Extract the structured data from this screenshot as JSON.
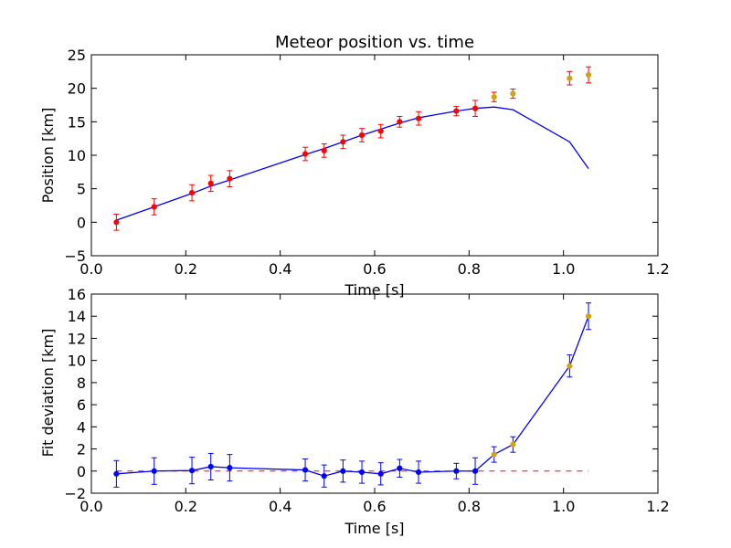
{
  "chart_data": [
    {
      "type": "scatter",
      "title": "Meteor position vs. time",
      "xlabel": "Time [s]",
      "ylabel": "Position [km]",
      "xlim": [
        0.0,
        1.2
      ],
      "ylim": [
        -5,
        25
      ],
      "xticks": [
        "0.0",
        "0.2",
        "0.4",
        "0.6",
        "0.8",
        "1.0",
        "1.2"
      ],
      "yticks": [
        "−5",
        "0",
        "5",
        "10",
        "15",
        "20",
        "25"
      ],
      "grid": false,
      "colors": {
        "points_fit": "#ff0000",
        "points_excluded": "#d4a017",
        "errorbar": "#ff0000",
        "model": "#0000ff"
      },
      "series": [
        {
          "role": "points",
          "x": [
            0.053,
            0.133,
            0.213,
            0.253,
            0.293,
            0.453,
            0.493,
            0.533,
            0.573,
            0.613,
            0.653,
            0.693,
            0.773,
            0.813,
            0.853,
            0.893,
            1.013,
            1.053
          ],
          "y": [
            0.0,
            2.3,
            4.4,
            5.8,
            6.5,
            10.2,
            10.7,
            12.0,
            13.0,
            13.6,
            15.0,
            15.5,
            16.6,
            17.0,
            18.7,
            19.2,
            21.5,
            22.0
          ],
          "yerr": [
            1.2,
            1.2,
            1.2,
            1.2,
            1.2,
            1.0,
            1.0,
            1.0,
            1.0,
            1.0,
            0.8,
            1.0,
            0.7,
            1.2,
            0.7,
            0.7,
            1.0,
            1.2
          ],
          "excluded": [
            false,
            false,
            false,
            false,
            false,
            false,
            false,
            false,
            false,
            false,
            false,
            false,
            false,
            false,
            true,
            true,
            true,
            true
          ]
        },
        {
          "role": "model",
          "x": [
            0.053,
            0.133,
            0.213,
            0.253,
            0.293,
            0.453,
            0.493,
            0.533,
            0.573,
            0.613,
            0.653,
            0.693,
            0.773,
            0.813,
            0.853,
            0.893,
            1.013,
            1.053
          ],
          "y": [
            0.3,
            2.3,
            4.3,
            5.4,
            6.3,
            10.1,
            11.0,
            12.0,
            13.0,
            13.9,
            14.8,
            15.6,
            16.6,
            17.0,
            17.2,
            16.8,
            12.0,
            8.0
          ]
        }
      ]
    },
    {
      "type": "line",
      "xlabel": "Time [s]",
      "ylabel": "Fit deviation [km]",
      "xlim": [
        0.0,
        1.2
      ],
      "ylim": [
        -2,
        16
      ],
      "xticks": [
        "0.0",
        "0.2",
        "0.4",
        "0.6",
        "0.8",
        "1.0",
        "1.2"
      ],
      "yticks": [
        "−2",
        "0",
        "2",
        "4",
        "6",
        "8",
        "10",
        "12",
        "14",
        "16"
      ],
      "grid": false,
      "colors": {
        "series": "#0000ff",
        "points_excluded": "#d4a017",
        "zero_line": "#ff0000"
      },
      "series": [
        {
          "role": "deviation",
          "x": [
            0.053,
            0.133,
            0.213,
            0.253,
            0.293,
            0.453,
            0.493,
            0.533,
            0.573,
            0.613,
            0.653,
            0.693,
            0.773,
            0.813,
            0.853,
            0.893,
            1.013,
            1.053
          ],
          "y": [
            -0.25,
            0.0,
            0.05,
            0.4,
            0.3,
            0.1,
            -0.45,
            0.0,
            -0.1,
            -0.25,
            0.25,
            -0.1,
            0.0,
            0.0,
            1.5,
            2.4,
            9.5,
            14.0
          ],
          "yerr": [
            1.2,
            1.2,
            1.2,
            1.2,
            1.2,
            1.0,
            1.0,
            1.0,
            1.0,
            1.0,
            0.8,
            1.0,
            0.7,
            1.2,
            0.7,
            0.7,
            1.0,
            1.2
          ],
          "excluded": [
            false,
            false,
            false,
            false,
            false,
            false,
            false,
            false,
            false,
            false,
            false,
            false,
            false,
            false,
            true,
            true,
            true,
            true
          ]
        },
        {
          "role": "zero-reference",
          "style": "dashed",
          "x": [
            0.053,
            1.053
          ],
          "y": [
            0,
            0
          ]
        }
      ]
    }
  ]
}
